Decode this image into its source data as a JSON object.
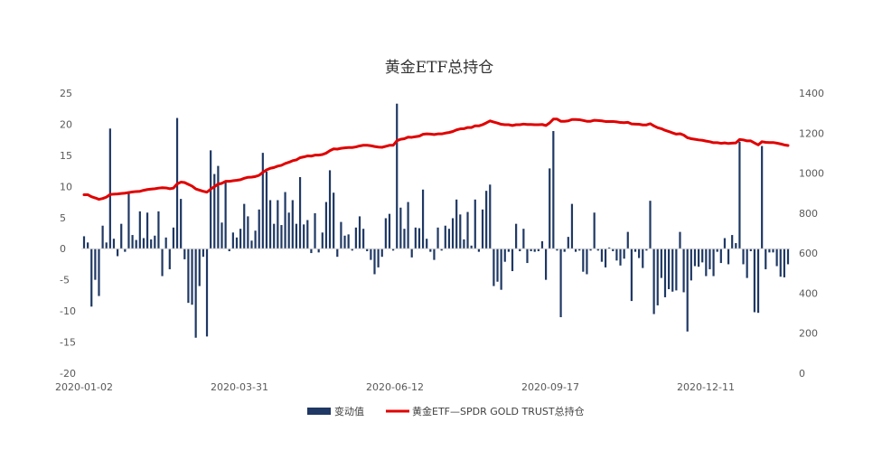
{
  "chart_data": {
    "type": "bar+line",
    "title": "黄金ETF总持仓",
    "x_tick_labels": [
      "2020-01-02",
      "2020-03-31",
      "2020-06-12",
      "2020-09-17",
      "2020-12-11"
    ],
    "left_axis": {
      "ylim": [
        -20,
        25
      ],
      "ticks": [
        "25",
        "20",
        "15",
        "10",
        "5",
        "0",
        "-5",
        "-10",
        "-15",
        "-20"
      ]
    },
    "right_axis": {
      "ylim": [
        0,
        1400
      ],
      "ticks": [
        "1400",
        "1200",
        "1000",
        "800",
        "600",
        "400",
        "200",
        "0"
      ]
    },
    "grid": false,
    "legend_position": "bottom",
    "series": [
      {
        "name": "变动值",
        "kind": "bar",
        "axis": "left",
        "color": "#1f3864",
        "values": [
          2,
          1,
          -9.3,
          -5,
          -7.6,
          3.7,
          1,
          19.3,
          1.6,
          -1.2,
          4,
          -0.5,
          9.2,
          2.2,
          1.4,
          6,
          1.7,
          5.8,
          1.5,
          2.1,
          6,
          -4.4,
          1.8,
          -3.3,
          3.4,
          21,
          8,
          -1.7,
          -8.7,
          -9,
          -14.3,
          -6,
          -1.3,
          -14.1,
          15.8,
          12,
          13.3,
          4.2,
          10.7,
          -0.4,
          2.6,
          1.8,
          3.2,
          7.2,
          5.2,
          1.3,
          2.9,
          6.3,
          15.4,
          12.4,
          7.8,
          4,
          7.8,
          3.8,
          9.1,
          5.8,
          7.8,
          4,
          11.5,
          3.9,
          4.6,
          -0.7,
          5.7,
          -0.6,
          2.6,
          7.5,
          12.6,
          9,
          -1.3,
          4.3,
          2.1,
          2.3,
          -0.3,
          3.4,
          5.2,
          3.2,
          -0.4,
          -1.8,
          -4.1,
          -3,
          -1.3,
          4.9,
          5.6,
          -0.3,
          23.3,
          6.6,
          3.2,
          7.5,
          -1.4,
          3.4,
          3.3,
          9.5,
          1.6,
          -0.5,
          -1.8,
          3.4,
          -0.3,
          3.7,
          3.2,
          4.9,
          7.9,
          5.5,
          1.5,
          5.9,
          0.5,
          7.9,
          -0.5,
          6.3,
          9.3,
          10.3,
          -6,
          -5.3,
          -6.6,
          -2.1,
          -0.5,
          -3.6,
          4,
          -0.4,
          3.2,
          -2.3,
          -0.4,
          -0.5,
          -0.4,
          1.2,
          -5,
          12.9,
          18.9,
          -0.3,
          -11,
          -0.5,
          1.9,
          7.2,
          -0.5,
          -0.3,
          -3.7,
          -4.1,
          -0.3,
          5.8,
          -0.3,
          -2.1,
          -3,
          0.2,
          -0.4,
          -1.9,
          -2.7,
          -1.6,
          2.7,
          -8.4,
          -0.5,
          -1.5,
          -3.1,
          -0.3,
          7.7,
          -10.5,
          -9.1,
          -4.7,
          -7.8,
          -6.5,
          -6.9,
          -6.7,
          2.7,
          -7,
          -13.3,
          -5.1,
          -2.8,
          -2.9,
          -2.2,
          -4.4,
          -3.3,
          -4.4,
          -0.5,
          -2.3,
          1.7,
          -2.5,
          2.2,
          0.9,
          17.2,
          -2.5,
          -4.7,
          -0.4,
          -10.2,
          -10.3,
          16.5,
          -3.3,
          -0.6,
          -0.6,
          -2.8,
          -4.5,
          -4.6,
          -2.5
        ]
      },
      {
        "name": "黄金ETF—SPDR GOLD TRUST总持仓",
        "kind": "line",
        "axis": "right",
        "color": "#e00000",
        "values": [
          892,
          892,
          882,
          876,
          869,
          873,
          880,
          893,
          895,
          896,
          898,
          900,
          903,
          906,
          908,
          909,
          914,
          918,
          920,
          922,
          925,
          927,
          926,
          922,
          925,
          946,
          955,
          953,
          944,
          935,
          921,
          915,
          909,
          905,
          920,
          932,
          945,
          949,
          959,
          959,
          962,
          964,
          967,
          974,
          979,
          980,
          983,
          989,
          1004,
          1016,
          1024,
          1028,
          1035,
          1039,
          1048,
          1054,
          1062,
          1066,
          1077,
          1081,
          1086,
          1085,
          1090,
          1090,
          1093,
          1100,
          1112,
          1121,
          1120,
          1124,
          1126,
          1128,
          1128,
          1131,
          1136,
          1139,
          1139,
          1137,
          1133,
          1130,
          1129,
          1134,
          1139,
          1139,
          1162,
          1169,
          1172,
          1180,
          1179,
          1182,
          1185,
          1194,
          1196,
          1195,
          1193,
          1196,
          1196,
          1200,
          1203,
          1208,
          1216,
          1221,
          1222,
          1228,
          1228,
          1236,
          1236,
          1242,
          1251,
          1261,
          1255,
          1250,
          1244,
          1242,
          1242,
          1238,
          1242,
          1242,
          1245,
          1243,
          1243,
          1242,
          1242,
          1243,
          1238,
          1251,
          1270,
          1270,
          1259,
          1259,
          1261,
          1268,
          1268,
          1267,
          1263,
          1259,
          1259,
          1264,
          1263,
          1261,
          1258,
          1258,
          1258,
          1256,
          1253,
          1252,
          1254,
          1246,
          1245,
          1244,
          1241,
          1241,
          1247,
          1236,
          1227,
          1222,
          1214,
          1208,
          1201,
          1195,
          1197,
          1190,
          1177,
          1172,
          1169,
          1166,
          1164,
          1160,
          1157,
          1152,
          1152,
          1149,
          1151,
          1148,
          1150,
          1151,
          1168,
          1166,
          1161,
          1161,
          1151,
          1141,
          1157,
          1154,
          1153,
          1153,
          1150,
          1146,
          1141,
          1138
        ]
      }
    ]
  }
}
